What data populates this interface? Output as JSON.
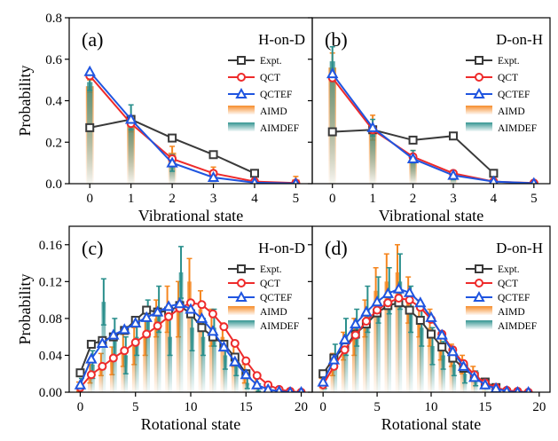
{
  "colors": {
    "expt": "#3a3a3a",
    "qct": "#ee2b2b",
    "qctef": "#1f55e0",
    "aimd": "#f5861f",
    "aimdef": "#2a8f8c"
  },
  "chart_data": [
    {
      "type": "line",
      "panel_label": "(a)",
      "title": "H-on-D",
      "xlabel": "Vibrational state",
      "ylabel": "Probability",
      "xlim": [
        -0.5,
        5.4
      ],
      "ylim": [
        0,
        0.8
      ],
      "xticks": [
        0,
        1,
        2,
        3,
        4,
        5
      ],
      "yticks": [
        0.0,
        0.2,
        0.4,
        0.6,
        0.8
      ],
      "ytick_labels": [
        "0.0",
        "0.2",
        "0.4",
        "0.6",
        "0.8"
      ],
      "legend_position": "right",
      "series": [
        {
          "name": "Expt.",
          "kind": "line",
          "marker": "square",
          "x": [
            0,
            1,
            2,
            3,
            4
          ],
          "values": [
            0.27,
            0.31,
            0.22,
            0.14,
            0.05
          ]
        },
        {
          "name": "QCT",
          "kind": "line",
          "marker": "circle",
          "x": [
            0,
            1,
            2,
            3,
            4,
            5
          ],
          "values": [
            0.52,
            0.29,
            0.12,
            0.05,
            0.01,
            0.003
          ]
        },
        {
          "name": "QCTEF",
          "kind": "line",
          "marker": "triangle",
          "x": [
            0,
            1,
            2,
            3,
            4,
            5
          ],
          "values": [
            0.54,
            0.31,
            0.1,
            0.03,
            0.005,
            0.001
          ]
        },
        {
          "name": "AIMD",
          "kind": "bar",
          "x": [
            0,
            1,
            2,
            3,
            4,
            5
          ],
          "values": [
            0.47,
            0.28,
            0.15,
            0.06,
            0.015,
            0.02
          ],
          "err": [
            0.03,
            0.03,
            0.03,
            0.02,
            0.01,
            0.015
          ]
        },
        {
          "name": "AIMDEF",
          "kind": "bar",
          "x": [
            0,
            1,
            2,
            3,
            4,
            5
          ],
          "values": [
            0.49,
            0.32,
            0.1,
            0.04,
            0.005,
            0.005
          ],
          "err": [
            0.04,
            0.06,
            0.04,
            0.02,
            0.005,
            0.005
          ]
        }
      ]
    },
    {
      "type": "line",
      "panel_label": "(b)",
      "title": "D-on-H",
      "xlabel": "Vibrational state",
      "ylabel": "",
      "xlim": [
        -0.5,
        5.4
      ],
      "ylim": [
        0,
        0.8
      ],
      "xticks": [
        0,
        1,
        2,
        3,
        4,
        5
      ],
      "yticks": [
        0.0,
        0.2,
        0.4,
        0.6,
        0.8
      ],
      "ytick_labels": [],
      "legend_position": "right",
      "series": [
        {
          "name": "Expt.",
          "kind": "line",
          "marker": "square",
          "x": [
            0,
            1,
            2,
            3,
            4
          ],
          "values": [
            0.25,
            0.26,
            0.21,
            0.23,
            0.05
          ]
        },
        {
          "name": "QCT",
          "kind": "line",
          "marker": "circle",
          "x": [
            0,
            1,
            2,
            3,
            4,
            5
          ],
          "values": [
            0.51,
            0.26,
            0.13,
            0.05,
            0.01,
            0.003
          ]
        },
        {
          "name": "QCTEF",
          "kind": "line",
          "marker": "triangle",
          "x": [
            0,
            1,
            2,
            3,
            4,
            5
          ],
          "values": [
            0.53,
            0.27,
            0.12,
            0.04,
            0.01,
            0.002
          ]
        },
        {
          "name": "AIMD",
          "kind": "bar",
          "x": [
            0,
            1,
            2,
            3,
            4,
            5
          ],
          "values": [
            0.56,
            0.27,
            0.13,
            0.05,
            0.01,
            0.005
          ],
          "err": [
            0.07,
            0.06,
            0.03,
            0.01,
            0.005,
            0.003
          ]
        },
        {
          "name": "AIMDEF",
          "kind": "bar",
          "x": [
            0,
            1,
            2,
            3,
            4,
            5
          ],
          "values": [
            0.59,
            0.27,
            0.13,
            0.03,
            0.01,
            0.004
          ],
          "err": [
            0.07,
            0.04,
            0.03,
            0.01,
            0.005,
            0.003
          ]
        }
      ]
    },
    {
      "type": "line",
      "panel_label": "(c)",
      "title": "H-on-D",
      "xlabel": "Rotational state",
      "ylabel": "Probability",
      "xlim": [
        -1,
        21
      ],
      "ylim": [
        0,
        0.18
      ],
      "xticks": [
        0,
        5,
        10,
        15,
        20
      ],
      "yticks": [
        0.0,
        0.04,
        0.08,
        0.12,
        0.16
      ],
      "ytick_labels": [
        "0.00",
        "0.04",
        "0.08",
        "0.12",
        "0.16"
      ],
      "legend_position": "right",
      "series": [
        {
          "name": "Expt.",
          "kind": "line",
          "marker": "square",
          "x": [
            0,
            1,
            2,
            3,
            4,
            5,
            6,
            7,
            8,
            9,
            10,
            11,
            12,
            13,
            14,
            15
          ],
          "values": [
            0.021,
            0.052,
            0.056,
            0.06,
            0.067,
            0.078,
            0.089,
            0.087,
            0.088,
            0.094,
            0.085,
            0.07,
            0.06,
            0.052,
            0.038,
            0.02
          ]
        },
        {
          "name": "QCT",
          "kind": "line",
          "marker": "circle",
          "x": [
            0,
            1,
            2,
            3,
            4,
            5,
            6,
            7,
            8,
            9,
            10,
            11,
            12,
            13,
            14,
            15,
            16,
            17,
            18,
            19,
            20
          ],
          "values": [
            0.005,
            0.019,
            0.028,
            0.037,
            0.045,
            0.054,
            0.063,
            0.072,
            0.082,
            0.091,
            0.097,
            0.095,
            0.085,
            0.071,
            0.053,
            0.034,
            0.018,
            0.008,
            0.003,
            0.001,
            0.0
          ]
        },
        {
          "name": "QCTEF",
          "kind": "line",
          "marker": "triangle",
          "x": [
            0,
            1,
            2,
            3,
            4,
            5,
            6,
            7,
            8,
            9,
            10,
            11,
            12,
            13,
            14,
            15,
            16,
            17,
            18,
            19,
            20
          ],
          "values": [
            0.008,
            0.036,
            0.053,
            0.062,
            0.068,
            0.075,
            0.081,
            0.087,
            0.093,
            0.096,
            0.09,
            0.08,
            0.066,
            0.049,
            0.033,
            0.019,
            0.008,
            0.003,
            0.001,
            0.0,
            0.0
          ]
        },
        {
          "name": "AIMD",
          "kind": "bar",
          "x": [
            0,
            1,
            2,
            3,
            4,
            5,
            6,
            7,
            8,
            9,
            10,
            11,
            12,
            13,
            14,
            15,
            16,
            17,
            18,
            19,
            20
          ],
          "values": [
            0.006,
            0.02,
            0.03,
            0.034,
            0.048,
            0.05,
            0.06,
            0.08,
            0.09,
            0.09,
            0.12,
            0.09,
            0.07,
            0.06,
            0.04,
            0.02,
            0.01,
            0.005,
            0.002,
            0.001,
            0.0
          ],
          "err": [
            0.005,
            0.01,
            0.012,
            0.015,
            0.02,
            0.02,
            0.02,
            0.02,
            0.025,
            0.03,
            0.025,
            0.02,
            0.02,
            0.015,
            0.012,
            0.01,
            0.006,
            0.003,
            0.002,
            0.001,
            0.0
          ]
        },
        {
          "name": "AIMDEF",
          "kind": "bar",
          "x": [
            0,
            1,
            2,
            3,
            4,
            5,
            6,
            7,
            8,
            9,
            10,
            11,
            12,
            13,
            14,
            15,
            16,
            17,
            18,
            19,
            20
          ],
          "values": [
            0.01,
            0.03,
            0.098,
            0.06,
            0.04,
            0.06,
            0.08,
            0.09,
            0.06,
            0.13,
            0.07,
            0.06,
            0.07,
            0.04,
            0.03,
            0.01,
            0.005,
            0.003,
            0.001,
            0.0,
            0.0
          ],
          "err": [
            0.005,
            0.015,
            0.025,
            0.02,
            0.02,
            0.02,
            0.02,
            0.025,
            0.02,
            0.028,
            0.025,
            0.02,
            0.02,
            0.015,
            0.012,
            0.006,
            0.004,
            0.002,
            0.001,
            0.0,
            0.0
          ]
        }
      ]
    },
    {
      "type": "line",
      "panel_label": "(d)",
      "title": "D-on-H",
      "xlabel": "Rotational state",
      "ylabel": "",
      "xlim": [
        -1,
        21
      ],
      "ylim": [
        0,
        0.18
      ],
      "xticks": [
        0,
        5,
        10,
        15,
        20
      ],
      "yticks": [
        0.0,
        0.04,
        0.08,
        0.12,
        0.16
      ],
      "ytick_labels": [],
      "legend_position": "right",
      "series": [
        {
          "name": "Expt.",
          "kind": "line",
          "marker": "square",
          "x": [
            0,
            1,
            2,
            3,
            4,
            5,
            6,
            7,
            8,
            9,
            10,
            11,
            12,
            13,
            14,
            15,
            16
          ],
          "values": [
            0.02,
            0.037,
            0.049,
            0.063,
            0.074,
            0.086,
            0.094,
            0.097,
            0.089,
            0.078,
            0.063,
            0.049,
            0.037,
            0.026,
            0.017,
            0.011,
            0.005
          ]
        },
        {
          "name": "QCT",
          "kind": "line",
          "marker": "circle",
          "x": [
            0,
            1,
            2,
            3,
            4,
            5,
            6,
            7,
            8,
            9,
            10,
            11,
            12,
            13,
            14,
            15,
            16,
            17,
            18,
            19
          ],
          "values": [
            0.008,
            0.028,
            0.046,
            0.062,
            0.077,
            0.089,
            0.097,
            0.102,
            0.1,
            0.092,
            0.079,
            0.063,
            0.046,
            0.031,
            0.019,
            0.01,
            0.005,
            0.002,
            0.001,
            0.0
          ]
        },
        {
          "name": "QCTEF",
          "kind": "line",
          "marker": "triangle",
          "x": [
            0,
            1,
            2,
            3,
            4,
            5,
            6,
            7,
            8,
            9,
            10,
            11,
            12,
            13,
            14,
            15,
            16,
            17,
            18,
            19
          ],
          "values": [
            0.011,
            0.035,
            0.057,
            0.074,
            0.087,
            0.098,
            0.107,
            0.112,
            0.108,
            0.097,
            0.081,
            0.062,
            0.044,
            0.028,
            0.016,
            0.008,
            0.004,
            0.001,
            0.0,
            0.0
          ]
        },
        {
          "name": "AIMD",
          "kind": "bar",
          "x": [
            0,
            1,
            2,
            3,
            4,
            5,
            6,
            7,
            8,
            9,
            10,
            11,
            12,
            13,
            14,
            15,
            16,
            17,
            18,
            19
          ],
          "values": [
            0.01,
            0.03,
            0.05,
            0.06,
            0.08,
            0.11,
            0.12,
            0.13,
            0.1,
            0.08,
            0.07,
            0.05,
            0.04,
            0.03,
            0.02,
            0.01,
            0.005,
            0.002,
            0.001,
            0.0
          ],
          "err": [
            0.005,
            0.012,
            0.015,
            0.02,
            0.02,
            0.025,
            0.03,
            0.03,
            0.025,
            0.02,
            0.02,
            0.015,
            0.012,
            0.01,
            0.008,
            0.005,
            0.003,
            0.002,
            0.001,
            0.0
          ]
        },
        {
          "name": "AIMDEF",
          "kind": "bar",
          "x": [
            0,
            1,
            2,
            3,
            4,
            5,
            6,
            7,
            8,
            9,
            10,
            11,
            12,
            13,
            14,
            15,
            16,
            17,
            18,
            19
          ],
          "values": [
            0.01,
            0.04,
            0.06,
            0.07,
            0.09,
            0.1,
            0.11,
            0.12,
            0.09,
            0.07,
            0.05,
            0.04,
            0.03,
            0.02,
            0.015,
            0.01,
            0.005,
            0.002,
            0.001,
            0.0
          ],
          "err": [
            0.006,
            0.012,
            0.02,
            0.02,
            0.025,
            0.025,
            0.025,
            0.03,
            0.025,
            0.02,
            0.02,
            0.015,
            0.012,
            0.01,
            0.008,
            0.005,
            0.003,
            0.002,
            0.001,
            0.0
          ]
        }
      ]
    }
  ]
}
